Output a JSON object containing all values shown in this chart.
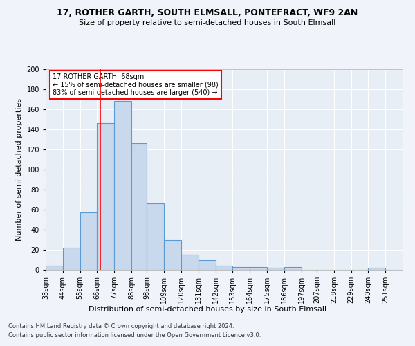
{
  "title1": "17, ROTHER GARTH, SOUTH ELMSALL, PONTEFRACT, WF9 2AN",
  "title2": "Size of property relative to semi-detached houses in South Elmsall",
  "xlabel": "Distribution of semi-detached houses by size in South Elmsall",
  "ylabel": "Number of semi-detached properties",
  "footer1": "Contains HM Land Registry data © Crown copyright and database right 2024.",
  "footer2": "Contains public sector information licensed under the Open Government Licence v3.0.",
  "annotation_title": "17 ROTHER GARTH: 68sqm",
  "annotation_line1": "← 15% of semi-detached houses are smaller (98)",
  "annotation_line2": "83% of semi-detached houses are larger (540) →",
  "bar_color": "#c9d9ed",
  "bar_edge_color": "#5b9bd5",
  "red_line_x": 68,
  "categories": [
    "33sqm",
    "44sqm",
    "55sqm",
    "66sqm",
    "77sqm",
    "88sqm",
    "98sqm",
    "109sqm",
    "120sqm",
    "131sqm",
    "142sqm",
    "153sqm",
    "164sqm",
    "175sqm",
    "186sqm",
    "197sqm",
    "207sqm",
    "218sqm",
    "229sqm",
    "240sqm",
    "251sqm"
  ],
  "bin_edges": [
    33,
    44,
    55,
    66,
    77,
    88,
    98,
    109,
    120,
    131,
    142,
    153,
    164,
    175,
    186,
    197,
    207,
    218,
    229,
    240,
    251,
    262
  ],
  "values": [
    4,
    22,
    57,
    146,
    168,
    126,
    66,
    30,
    15,
    10,
    4,
    3,
    3,
    2,
    3,
    0,
    0,
    0,
    0,
    2,
    0
  ],
  "ylim": [
    0,
    200
  ],
  "yticks": [
    0,
    20,
    40,
    60,
    80,
    100,
    120,
    140,
    160,
    180,
    200
  ],
  "fig_bg": "#f0f4fa",
  "ax_bg": "#e8eef5",
  "grid_color": "#ffffff",
  "title1_fontsize": 9,
  "title2_fontsize": 8,
  "ylabel_fontsize": 8,
  "xlabel_fontsize": 8,
  "tick_fontsize": 7,
  "footer_fontsize": 6
}
